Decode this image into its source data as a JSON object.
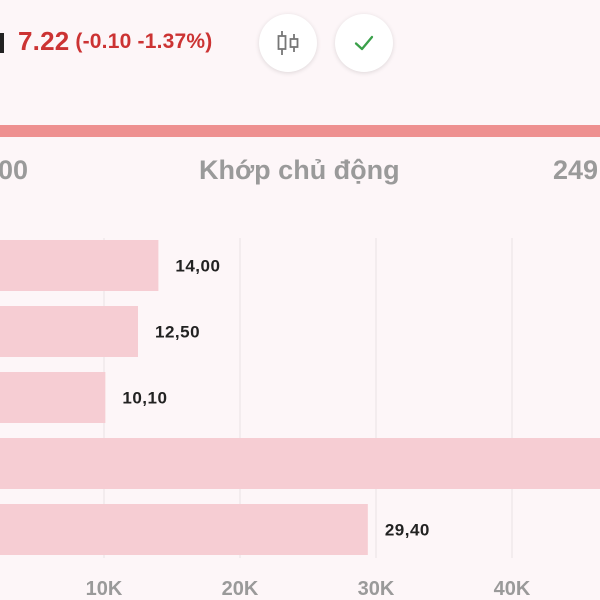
{
  "header": {
    "price": "7.22",
    "change": "(-0.10 -1.37%)",
    "price_color": "#cc3333",
    "candlestick_icon": "candlestick-chart-icon",
    "check_icon": "check-icon"
  },
  "stats": {
    "left_value": "00",
    "center_label": "Khớp chủ động",
    "right_value": "249"
  },
  "colors": {
    "background": "#fdf6f8",
    "accent_bar": "#ee9090",
    "bar_fill": "#f6cdd3",
    "check": "#3aa04a"
  },
  "chart_data": {
    "type": "bar",
    "orientation": "horizontal",
    "values": [
      14000,
      12500,
      10100,
      null,
      29400
    ],
    "data_labels": [
      "14,00",
      "12,50",
      "10,10",
      "",
      "29,40"
    ],
    "xticks": [
      10000,
      20000,
      30000,
      40000
    ],
    "xtick_labels": [
      "10K",
      "20K",
      "30K",
      "40K"
    ],
    "grid": true
  }
}
